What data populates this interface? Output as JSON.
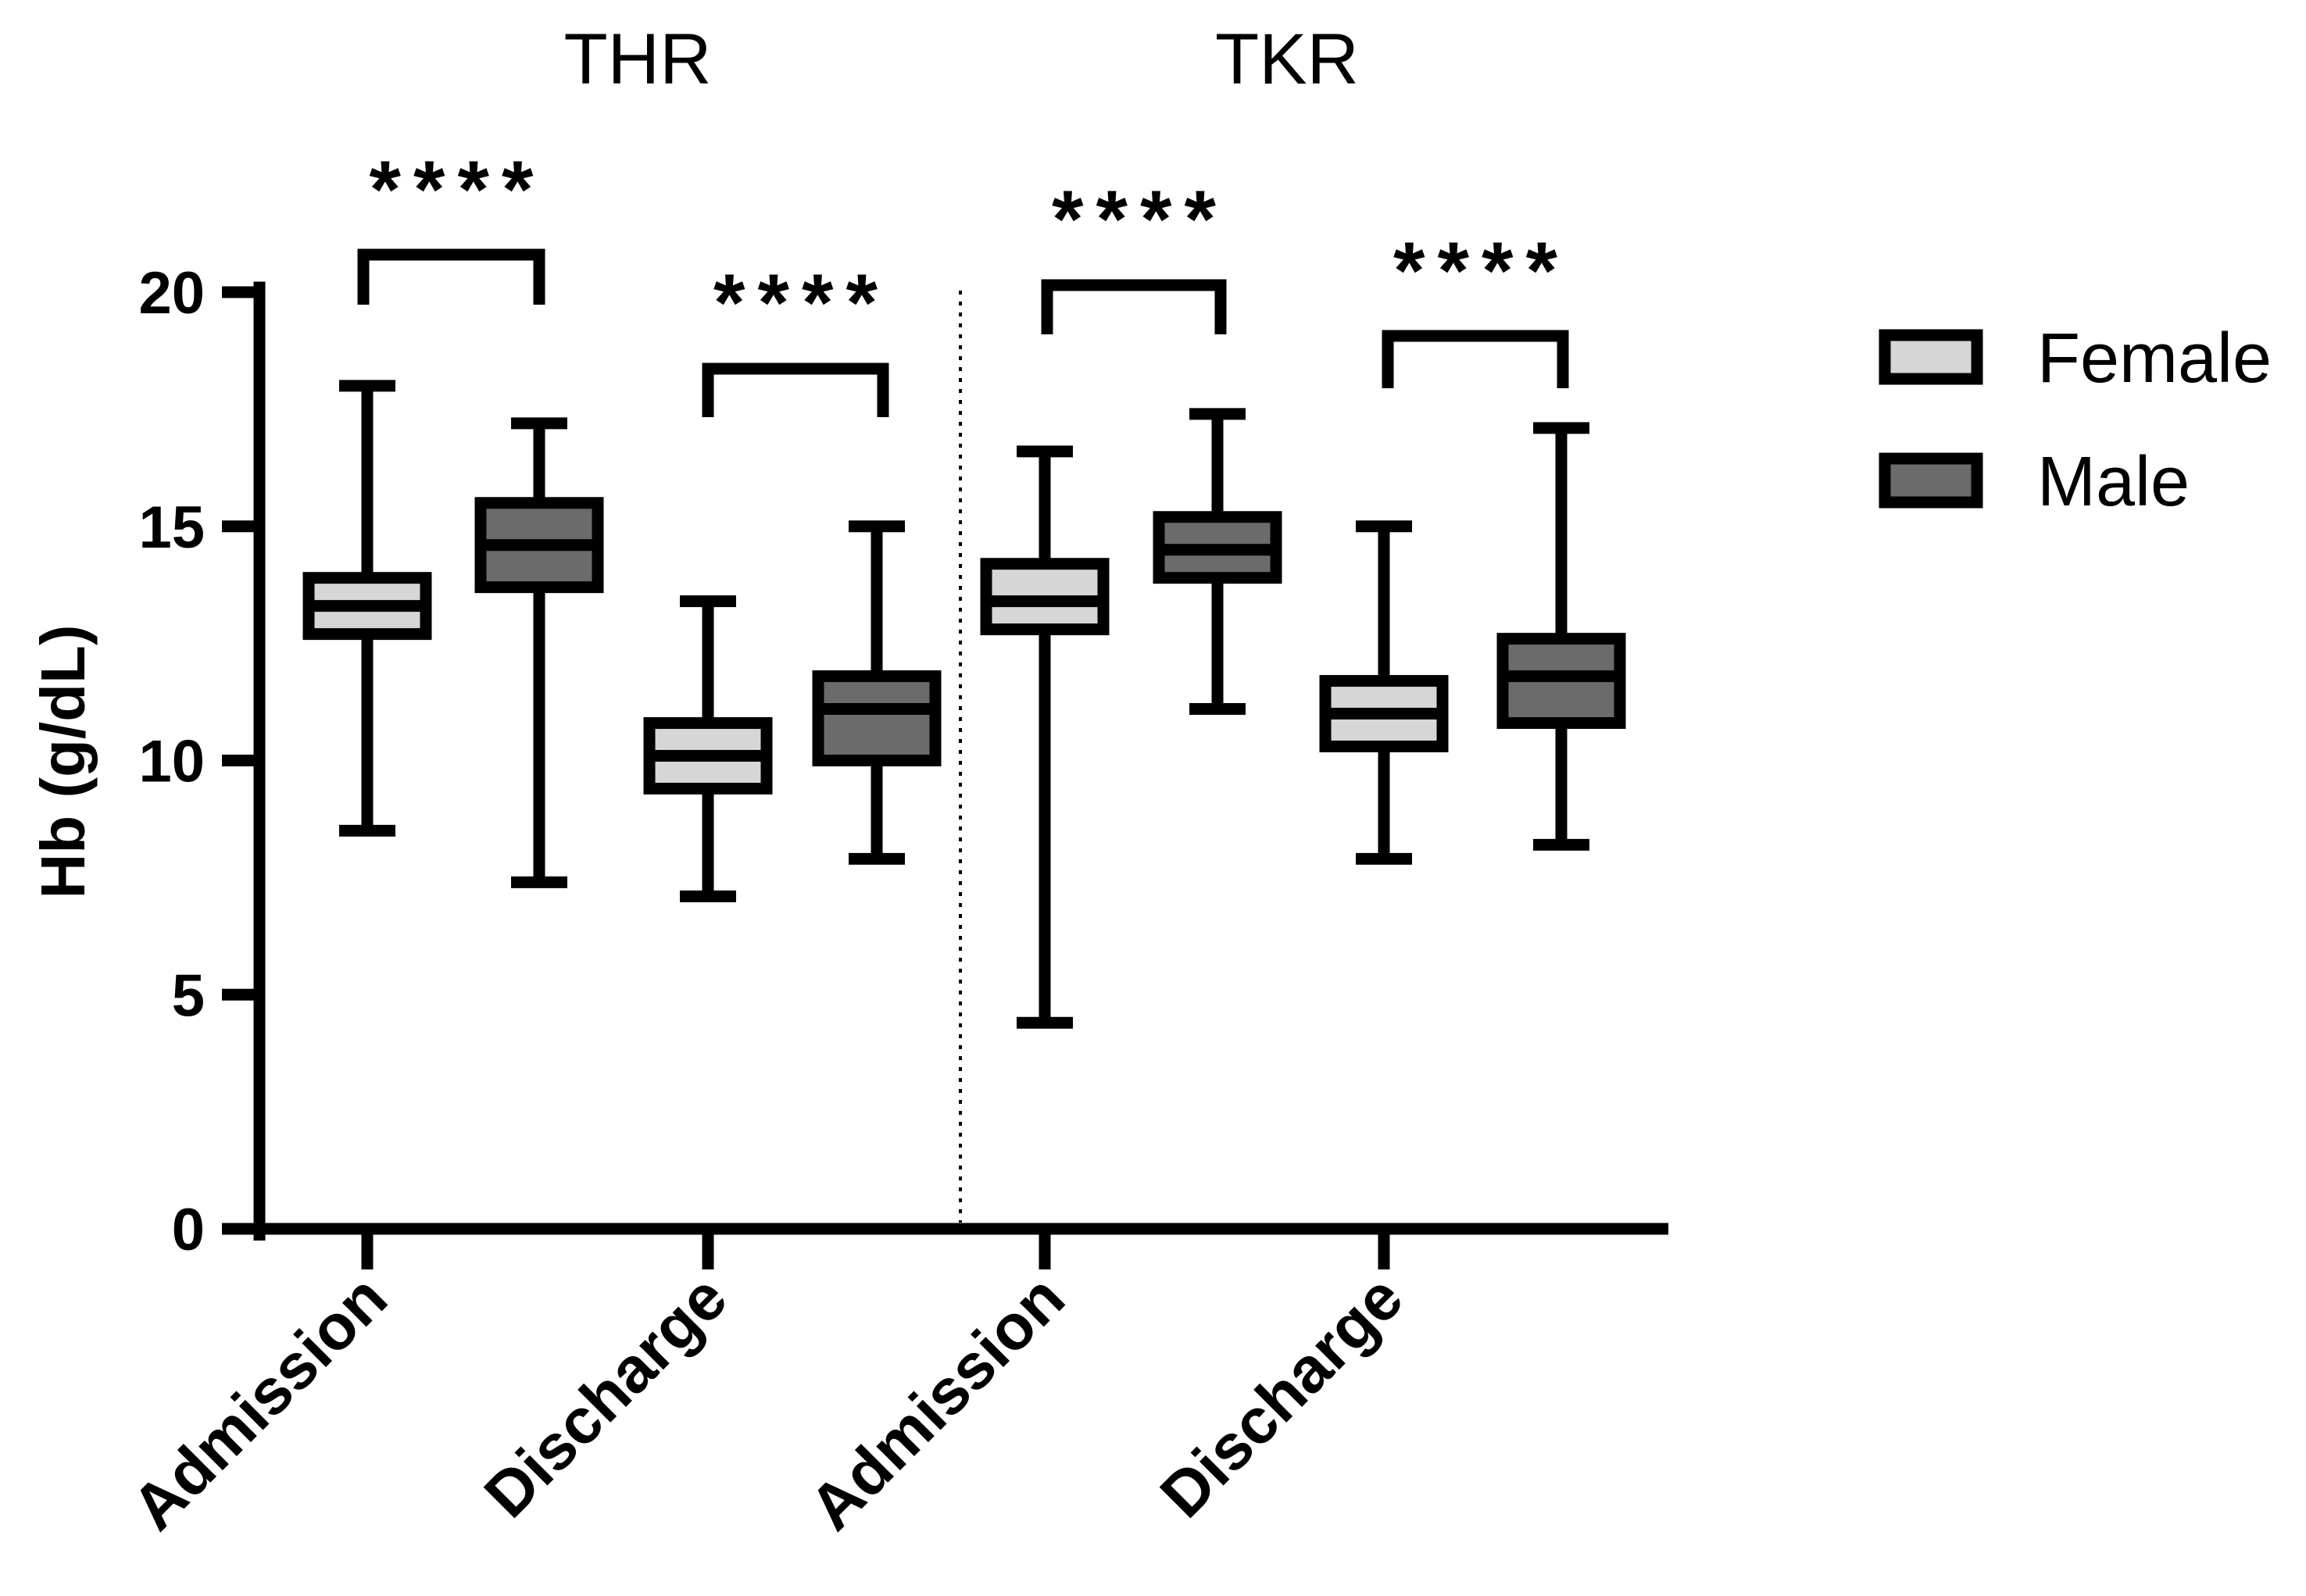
{
  "chart_data": {
    "type": "box",
    "ylabel": "Hb (g/dL)",
    "ylim": [
      0,
      20
    ],
    "yticks": [
      0,
      5,
      10,
      15,
      20
    ],
    "groups": [
      {
        "title": "THR",
        "categories": [
          "Admission",
          "Discharge"
        ]
      },
      {
        "title": "TKR",
        "categories": [
          "Admission",
          "Discharge"
        ]
      }
    ],
    "legend": [
      {
        "name": "Female",
        "color": "#d6d6d6"
      },
      {
        "name": "Male",
        "color": "#6b6b6b"
      }
    ],
    "boxes": [
      {
        "group": "THR",
        "category": "Admission",
        "series": "Female",
        "min": 8.5,
        "q1": 12.7,
        "median": 13.3,
        "q3": 13.9,
        "max": 18.0
      },
      {
        "group": "THR",
        "category": "Admission",
        "series": "Male",
        "min": 7.4,
        "q1": 13.7,
        "median": 14.6,
        "q3": 15.5,
        "max": 17.2
      },
      {
        "group": "THR",
        "category": "Discharge",
        "series": "Female",
        "min": 7.1,
        "q1": 9.4,
        "median": 10.1,
        "q3": 10.8,
        "max": 13.4
      },
      {
        "group": "THR",
        "category": "Discharge",
        "series": "Male",
        "min": 7.9,
        "q1": 10.0,
        "median": 11.1,
        "q3": 11.8,
        "max": 15.0
      },
      {
        "group": "TKR",
        "category": "Admission",
        "series": "Female",
        "min": 4.4,
        "q1": 12.8,
        "median": 13.4,
        "q3": 14.2,
        "max": 16.6
      },
      {
        "group": "TKR",
        "category": "Admission",
        "series": "Male",
        "min": 11.1,
        "q1": 13.9,
        "median": 14.5,
        "q3": 15.2,
        "max": 17.4
      },
      {
        "group": "TKR",
        "category": "Discharge",
        "series": "Female",
        "min": 7.9,
        "q1": 10.3,
        "median": 11.0,
        "q3": 11.7,
        "max": 15.0
      },
      {
        "group": "TKR",
        "category": "Discharge",
        "series": "Male",
        "min": 8.2,
        "q1": 10.8,
        "median": 11.8,
        "q3": 12.6,
        "max": 17.1
      }
    ],
    "significance": [
      {
        "group": "THR",
        "category": "Admission",
        "label": "****"
      },
      {
        "group": "THR",
        "category": "Discharge",
        "label": "****"
      },
      {
        "group": "TKR",
        "category": "Admission",
        "label": "****"
      },
      {
        "group": "TKR",
        "category": "Discharge",
        "label": "****"
      }
    ]
  }
}
